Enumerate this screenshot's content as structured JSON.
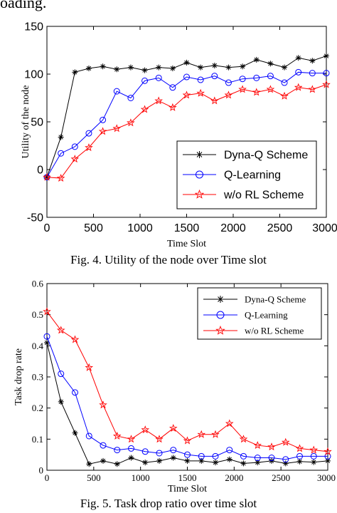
{
  "page": {
    "top_snippet": "oading.",
    "fig4_caption": "Fig. 4. Utility of the node over Time slot",
    "fig5_caption": "Fig. 5. Task drop ratio over time slot"
  },
  "chart_data": [
    {
      "type": "line",
      "xlabel": "Time Slot",
      "ylabel": "Utility of the node",
      "xlim": [
        0,
        3000
      ],
      "ylim": [
        -50,
        150
      ],
      "xticks": [
        0,
        500,
        1000,
        1500,
        2000,
        2500,
        3000
      ],
      "yticks": [
        -50,
        0,
        50,
        100,
        150
      ],
      "grid": false,
      "legend_position": "bottom-right",
      "x": [
        0,
        150,
        300,
        450,
        600,
        750,
        900,
        1050,
        1200,
        1350,
        1500,
        1650,
        1800,
        1950,
        2100,
        2250,
        2400,
        2550,
        2700,
        2850,
        3000
      ],
      "series": [
        {
          "name": "Dyna-Q Scheme",
          "color": "#000000",
          "marker": "star",
          "values": [
            -8,
            34,
            102,
            106,
            108,
            105,
            107,
            104,
            107,
            106,
            112,
            107,
            109,
            107,
            108,
            115,
            111,
            107,
            117,
            114,
            119
          ]
        },
        {
          "name": "Q-Learning",
          "color": "#0000ff",
          "marker": "circle",
          "values": [
            -8,
            17,
            24,
            38,
            52,
            82,
            75,
            93,
            96,
            86,
            97,
            94,
            98,
            91,
            95,
            96,
            98,
            91,
            102,
            101,
            101
          ]
        },
        {
          "name": "w/o RL Scheme",
          "color": "#ff0000",
          "marker": "pentagram",
          "values": [
            -8,
            -9,
            11,
            23,
            40,
            43,
            49,
            63,
            72,
            65,
            78,
            80,
            72,
            78,
            84,
            81,
            84,
            77,
            86,
            84,
            89
          ]
        }
      ]
    },
    {
      "type": "line",
      "xlabel": "Time Slot",
      "ylabel": "Task drop rate",
      "xlim": [
        0,
        3000
      ],
      "ylim": [
        0,
        0.6
      ],
      "xticks": [
        0,
        500,
        1000,
        1500,
        2000,
        2500,
        3000
      ],
      "yticks": [
        0,
        0.1,
        0.2,
        0.3,
        0.4,
        0.5,
        0.6
      ],
      "grid": false,
      "legend_position": "top-right",
      "x": [
        0,
        150,
        300,
        450,
        600,
        750,
        900,
        1050,
        1200,
        1350,
        1500,
        1650,
        1800,
        1950,
        2100,
        2250,
        2400,
        2550,
        2700,
        2850,
        3000
      ],
      "series": [
        {
          "name": "Dyna-Q Scheme",
          "color": "#000000",
          "marker": "star",
          "values": [
            0.41,
            0.22,
            0.12,
            0.02,
            0.03,
            0.02,
            0.04,
            0.025,
            0.03,
            0.04,
            0.03,
            0.03,
            0.025,
            0.035,
            0.022,
            0.025,
            0.03,
            0.022,
            0.028,
            0.026,
            0.03
          ]
        },
        {
          "name": "Q-Learning",
          "color": "#0000ff",
          "marker": "circle",
          "values": [
            0.43,
            0.31,
            0.25,
            0.11,
            0.08,
            0.065,
            0.07,
            0.06,
            0.055,
            0.065,
            0.05,
            0.045,
            0.045,
            0.065,
            0.045,
            0.04,
            0.04,
            0.035,
            0.045,
            0.045,
            0.045
          ]
        },
        {
          "name": "w/o RL Scheme",
          "color": "#ff0000",
          "marker": "pentagram",
          "values": [
            0.51,
            0.45,
            0.42,
            0.33,
            0.21,
            0.11,
            0.1,
            0.13,
            0.1,
            0.135,
            0.095,
            0.115,
            0.115,
            0.15,
            0.1,
            0.08,
            0.075,
            0.09,
            0.07,
            0.065,
            0.06
          ]
        }
      ]
    }
  ]
}
